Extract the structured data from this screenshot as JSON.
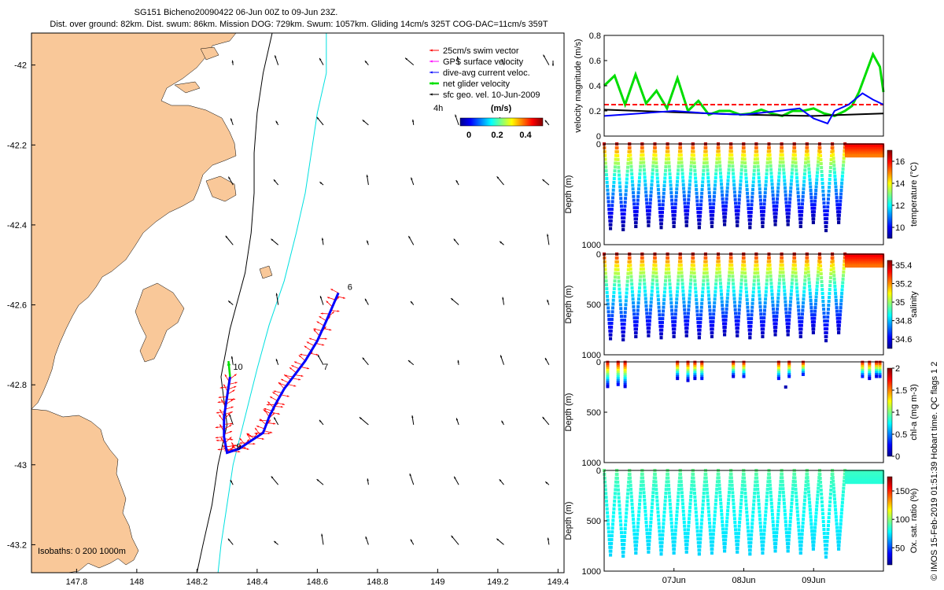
{
  "title": {
    "line1": "SG151 Bicheno20090422 06-Jun 00Z to 09-Jun 23Z.",
    "line2": "Dist. over ground: 82km. Dist. swum: 86km. Mission DOG: 729km. Swum: 1057km. Gliding 14cm/s 325T COG-DAC=11cm/s 359T"
  },
  "side_note": "© IMOS 15-Feb-2019 01:51:39 Hobart time. QC flags 1  2",
  "colors": {
    "land": "#f9c899",
    "swim": "#ff0000",
    "gps": "#ff00ff",
    "dac": "#0000ff",
    "net": "#00e000",
    "geo": "#000000",
    "isobath200": "#000000",
    "isobath1000": "#00e0e0"
  },
  "chart_data": [
    {
      "type": "map",
      "xlim": [
        147.65,
        149.42
      ],
      "ylim": [
        -43.27,
        -41.92
      ],
      "xticks": [
        147.8,
        148.0,
        148.2,
        148.4,
        148.6,
        148.8,
        149.0,
        149.2,
        149.4
      ],
      "xtick_labels": [
        "147.8",
        "148",
        "148.2",
        "148.4",
        "148.6",
        "148.8",
        "149",
        "149.2",
        "149.4"
      ],
      "yticks": [
        -42.0,
        -42.2,
        -42.4,
        -42.6,
        -42.8,
        -43.0,
        -43.2
      ],
      "ytick_labels": [
        "-42",
        "-42.2",
        "-42.4",
        "-42.6",
        "-42.8",
        "-43",
        "-43.2"
      ],
      "legend": {
        "placement": "top-right",
        "entries": [
          "25cm/s swim vector",
          "GPS surface velocity",
          "dive-avg current veloc.",
          "net glider velocity",
          "sfc geo. vel. 10-Jun-2009"
        ],
        "label_4h": "4h",
        "colorbar_label": "(m/s)",
        "colorbar_ticks": [
          "0",
          "0.2",
          "0.4"
        ]
      },
      "isobath_label": "Isobaths: 0   200   1000m",
      "track_labels": [
        {
          "text": "6",
          "lon": 148.69,
          "lat": -42.57
        },
        {
          "text": "7",
          "lon": 148.61,
          "lat": -42.77
        },
        {
          "text": "9",
          "lon": 148.32,
          "lat": -42.97
        },
        {
          "text": "10",
          "lon": 148.31,
          "lat": -42.77
        }
      ],
      "track": [
        [
          148.67,
          -42.57
        ],
        [
          148.63,
          -42.64
        ],
        [
          148.6,
          -42.69
        ],
        [
          148.56,
          -42.74
        ],
        [
          148.52,
          -42.78
        ],
        [
          148.49,
          -42.81
        ],
        [
          148.46,
          -42.85
        ],
        [
          148.44,
          -42.88
        ],
        [
          148.42,
          -42.92
        ],
        [
          148.38,
          -42.94
        ],
        [
          148.34,
          -42.96
        ],
        [
          148.3,
          -42.97
        ],
        [
          148.29,
          -42.93
        ],
        [
          148.29,
          -42.88
        ],
        [
          148.3,
          -42.83
        ],
        [
          148.31,
          -42.78
        ]
      ],
      "isobath_200": [
        [
          148.45,
          -41.92
        ],
        [
          148.42,
          -42.02
        ],
        [
          148.4,
          -42.12
        ],
        [
          148.39,
          -42.22
        ],
        [
          148.39,
          -42.32
        ],
        [
          148.38,
          -42.42
        ],
        [
          148.36,
          -42.52
        ],
        [
          148.31,
          -42.66
        ],
        [
          148.28,
          -42.78
        ],
        [
          148.3,
          -42.9
        ],
        [
          148.27,
          -43.0
        ],
        [
          148.25,
          -43.1
        ],
        [
          148.22,
          -43.2
        ],
        [
          148.2,
          -43.27
        ]
      ],
      "isobath_1000": [
        [
          148.63,
          -41.92
        ],
        [
          148.63,
          -42.02
        ],
        [
          148.6,
          -42.12
        ],
        [
          148.58,
          -42.22
        ],
        [
          148.56,
          -42.32
        ],
        [
          148.53,
          -42.42
        ],
        [
          148.49,
          -42.54
        ],
        [
          148.44,
          -42.65
        ],
        [
          148.4,
          -42.76
        ],
        [
          148.36,
          -42.88
        ],
        [
          148.32,
          -43.0
        ],
        [
          148.3,
          -43.1
        ],
        [
          148.28,
          -43.2
        ],
        [
          148.27,
          -43.27
        ]
      ]
    },
    {
      "type": "line",
      "ylabel": "velocity magnitude (m/s)",
      "ylim": [
        0,
        0.8
      ],
      "yticks": [
        0,
        0.2,
        0.4,
        0.6,
        0.8
      ],
      "x_days": [
        6.0,
        10.0
      ],
      "series": [
        {
          "color": "#00dd00",
          "x": [
            6.0,
            6.15,
            6.3,
            6.45,
            6.6,
            6.75,
            6.9,
            7.05,
            7.2,
            7.35,
            7.5,
            7.65,
            7.8,
            7.95,
            8.1,
            8.25,
            8.4,
            8.55,
            8.7,
            8.85,
            9.0,
            9.15,
            9.3,
            9.45,
            9.55,
            9.65,
            9.75,
            9.85,
            9.95,
            10.0
          ],
          "y": [
            0.4,
            0.48,
            0.25,
            0.49,
            0.26,
            0.36,
            0.22,
            0.46,
            0.2,
            0.28,
            0.17,
            0.2,
            0.2,
            0.17,
            0.18,
            0.21,
            0.18,
            0.16,
            0.2,
            0.2,
            0.22,
            0.18,
            0.16,
            0.2,
            0.24,
            0.35,
            0.5,
            0.65,
            0.55,
            0.35
          ]
        },
        {
          "color": "#ff0000",
          "dashed": true,
          "x": [
            6.0,
            10.0
          ],
          "y": [
            0.25,
            0.25
          ]
        },
        {
          "color": "#000000",
          "x": [
            6.0,
            7.0,
            8.0,
            9.0,
            9.5,
            10.0
          ],
          "y": [
            0.21,
            0.19,
            0.17,
            0.16,
            0.17,
            0.18
          ]
        },
        {
          "color": "#0000ff",
          "x": [
            6.0,
            6.5,
            7.0,
            7.5,
            8.0,
            8.5,
            8.8,
            9.0,
            9.2,
            9.3,
            9.5,
            9.7,
            9.85,
            10.0
          ],
          "y": [
            0.16,
            0.18,
            0.2,
            0.18,
            0.17,
            0.2,
            0.22,
            0.14,
            0.1,
            0.2,
            0.25,
            0.34,
            0.29,
            0.25
          ]
        }
      ]
    },
    {
      "type": "scatter",
      "ylabel": "Depth (m)",
      "ylim": [
        1000,
        0
      ],
      "yticks": [
        0,
        1000
      ],
      "colorbar_label": "temperature (°C)",
      "colorbar_ticks": [
        10,
        12,
        14,
        16
      ],
      "colorbar_range": [
        9,
        17
      ],
      "dives": 19,
      "surface_value": 16.5,
      "bottom_value": 9.2,
      "max_depth": [
        840,
        850,
        820,
        810,
        830,
        820,
        810,
        830,
        820,
        800,
        810,
        830,
        820,
        800,
        800,
        820,
        780,
        860,
        780
      ]
    },
    {
      "type": "scatter",
      "ylabel": "Depth (m)",
      "ylim": [
        1000,
        0
      ],
      "yticks": [
        0,
        500,
        1000
      ],
      "colorbar_label": "salinity",
      "colorbar_ticks": [
        34.6,
        34.8,
        35,
        35.2,
        35.4
      ],
      "colorbar_range": [
        34.5,
        35.45
      ],
      "dives": 19,
      "surface_value": 35.4,
      "bottom_value": 34.55,
      "max_depth": [
        840,
        850,
        820,
        810,
        830,
        820,
        810,
        830,
        820,
        800,
        810,
        830,
        820,
        800,
        800,
        820,
        780,
        860,
        780
      ]
    },
    {
      "type": "scatter",
      "ylabel": "Depth (m)",
      "ylim": [
        1000,
        0
      ],
      "yticks": [
        0,
        500,
        1000
      ],
      "colorbar_label": "chl-a (mg m-3)",
      "colorbar_ticks": [
        0,
        0.5,
        1,
        1.5,
        2
      ],
      "colorbar_range": [
        0,
        2
      ],
      "casts_x": [
        6.05,
        6.2,
        6.3,
        7.05,
        7.2,
        7.3,
        7.4,
        7.85,
        8.0,
        8.5,
        8.65,
        8.85,
        9.7,
        9.8,
        9.9,
        9.95
      ],
      "casts_depth": [
        240,
        230,
        240,
        160,
        180,
        160,
        170,
        140,
        150,
        170,
        150,
        130,
        150,
        160,
        140,
        150
      ]
    },
    {
      "type": "scatter",
      "ylabel": "Depth (m)",
      "ylim": [
        1000,
        0
      ],
      "yticks": [
        0,
        500,
        1000
      ],
      "xticks": [
        7,
        8,
        9
      ],
      "xtick_labels": [
        "07Jun",
        "08Jun",
        "09Jun"
      ],
      "colorbar_label": "Ox. sat. ratio (%)",
      "colorbar_ticks": [
        50,
        100,
        150
      ],
      "colorbar_range": [
        20,
        175
      ],
      "dives": 19,
      "surface_value": 95,
      "bottom_value": 72,
      "max_depth": [
        840,
        850,
        820,
        810,
        830,
        820,
        810,
        830,
        820,
        800,
        810,
        830,
        820,
        800,
        800,
        820,
        780,
        860,
        780
      ]
    }
  ]
}
